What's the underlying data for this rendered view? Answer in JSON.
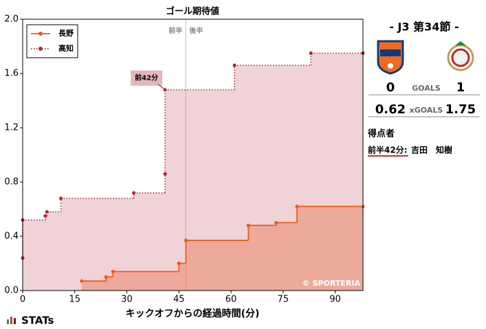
{
  "chart_data": {
    "type": "step",
    "title": "ゴール期待値",
    "x_label": "キックオフからの経過時間(分)",
    "xlim": [
      0,
      98
    ],
    "ylim": [
      0,
      2.0
    ],
    "xticks": [
      0,
      15,
      30,
      45,
      60,
      75,
      90
    ],
    "yticks": [
      {
        "value": 0,
        "label": "0.0"
      },
      {
        "value": 0.4,
        "label": "0.4"
      },
      {
        "value": 0.8,
        "label": "0.8"
      },
      {
        "value": 1.2,
        "label": "1.2"
      },
      {
        "value": 1.6,
        "label": "1.6"
      },
      {
        "value": 2.0,
        "label": "2.0"
      }
    ],
    "legend": "upper left",
    "halftime": {
      "x": 47,
      "first_label": "前半",
      "second_label": "後半"
    },
    "annotation": {
      "text": "前42分",
      "x": 41,
      "y": 1.48
    },
    "credit": "© SPORTERIA",
    "series": [
      {
        "name": "長野",
        "color": "#ee5a1b",
        "fill": "rgba(235,120,85,0.45)",
        "style": "solid",
        "x": [
          17,
          24,
          26,
          45,
          47,
          65,
          73,
          79,
          98
        ],
        "values": [
          0.07,
          0.1,
          0.14,
          0.2,
          0.37,
          0.48,
          0.5,
          0.62,
          0.62
        ]
      },
      {
        "name": "高知",
        "color": "#b22a33",
        "fill": "rgba(205,120,130,0.33)",
        "style": "dotted",
        "x": [
          0,
          0,
          6.5,
          7,
          11,
          32,
          41,
          41,
          61,
          83,
          98
        ],
        "values": [
          0.24,
          0.52,
          0.55,
          0.58,
          0.68,
          0.72,
          0.86,
          1.48,
          1.66,
          1.75,
          1.75
        ]
      }
    ]
  },
  "scoreboard": {
    "round": "-  J3 第34節  -",
    "goals_label": "GOALS",
    "home_goals": 0,
    "away_goals": 1,
    "xgoals_label": "xGOALS",
    "home_xg": 0.62,
    "away_xg": 1.75,
    "scorers_title": "得点者",
    "scorers": [
      {
        "time": "前半42分:",
        "player": "吉田　知樹"
      }
    ]
  },
  "footer": {
    "brand": "STATs"
  }
}
